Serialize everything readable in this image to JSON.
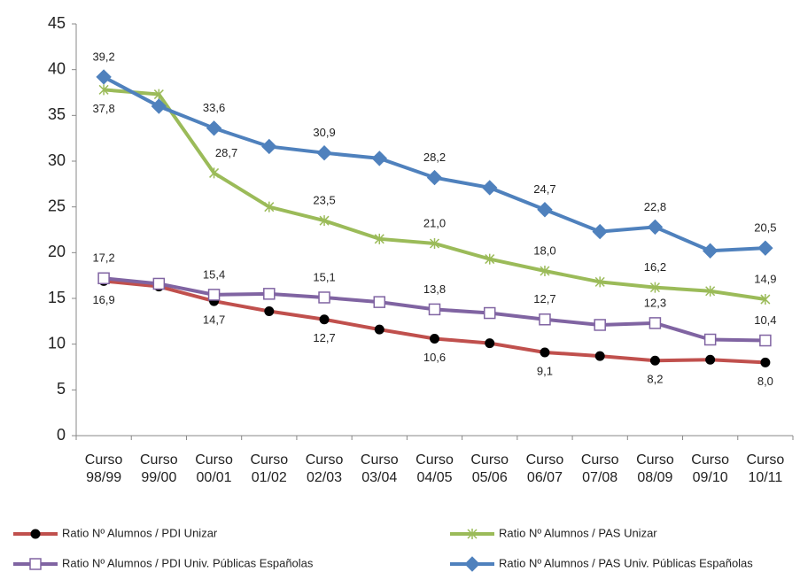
{
  "chart_data": {
    "type": "line",
    "categories": [
      "Curso 98/99",
      "Curso 99/00",
      "Curso 00/01",
      "Curso 01/02",
      "Curso 02/03",
      "Curso 03/04",
      "Curso 04/05",
      "Curso 05/06",
      "Curso 06/07",
      "Curso 07/08",
      "Curso 08/09",
      "Curso 09/10",
      "Curso 10/11"
    ],
    "series": [
      {
        "name": "Ratio Nº Alumnos / PDI Unizar",
        "color": "#c0504d",
        "marker": "circle",
        "values": [
          16.9,
          16.3,
          14.7,
          13.6,
          12.7,
          11.6,
          10.6,
          10.1,
          9.1,
          8.7,
          8.2,
          8.3,
          8.0
        ],
        "value_labels": [
          "16,9",
          null,
          "14,7",
          null,
          "12,7",
          null,
          "10,6",
          null,
          "9,1",
          null,
          "8,2",
          null,
          "8,0"
        ]
      },
      {
        "name": "Ratio Nº Alumnos / PAS Unizar",
        "color": "#9bbb59",
        "marker": "star",
        "values": [
          37.8,
          37.3,
          28.7,
          25.0,
          23.5,
          21.5,
          21.0,
          19.3,
          18.0,
          16.8,
          16.2,
          15.8,
          14.9
        ],
        "value_labels": [
          "37,8",
          null,
          "28,7",
          null,
          "23,5",
          null,
          "21,0",
          null,
          "18,0",
          null,
          "16,2",
          null,
          "14,9"
        ]
      },
      {
        "name": "Ratio Nº Alumnos / PDI Univ. Públicas Españolas",
        "color": "#8064a2",
        "marker": "square",
        "values": [
          17.2,
          16.6,
          15.4,
          15.5,
          15.1,
          14.6,
          13.8,
          13.4,
          12.7,
          12.1,
          12.3,
          10.5,
          10.4
        ],
        "value_labels": [
          "17,2",
          null,
          "15,4",
          null,
          "15,1",
          null,
          "13,8",
          null,
          "12,7",
          null,
          "12,3",
          null,
          "10,4"
        ]
      },
      {
        "name": "Ratio Nº Alumnos / PAS Univ. Públicas Españolas",
        "color": "#4f81bd",
        "marker": "diamond",
        "values": [
          39.2,
          36.0,
          33.6,
          31.6,
          30.9,
          30.3,
          28.2,
          27.1,
          24.7,
          22.3,
          22.8,
          20.2,
          20.5
        ],
        "value_labels": [
          "39,2",
          null,
          "33,6",
          null,
          "30,9",
          null,
          "28,2",
          null,
          "24,7",
          null,
          "22,8",
          null,
          "20,5"
        ]
      }
    ],
    "ylim": [
      0,
      45
    ],
    "yticks": [
      0,
      5,
      10,
      15,
      20,
      25,
      30,
      35,
      40,
      45
    ],
    "grid": false
  }
}
